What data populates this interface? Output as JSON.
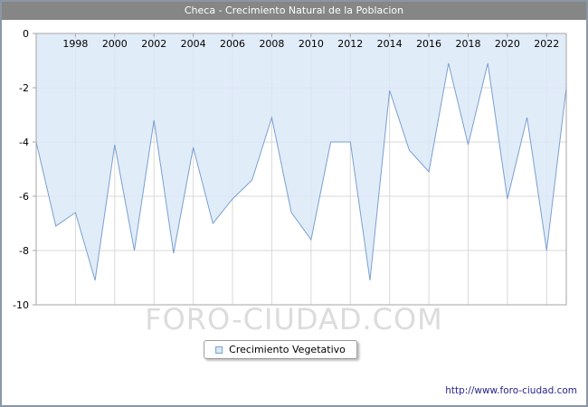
{
  "title": "Checa - Crecimiento Natural de la Poblacion",
  "watermark": "FORO-CIUDAD.COM",
  "legend": {
    "label": "Crecimiento Vegetativo"
  },
  "footer": {
    "url": "http://www.foro-ciudad.com"
  },
  "chart_data": {
    "type": "area",
    "title": "Checa - Crecimiento Natural de la Poblacion",
    "series_name": "Crecimiento Vegetativo",
    "x": [
      1996,
      1997,
      1998,
      1999,
      2000,
      2001,
      2002,
      2003,
      2004,
      2005,
      2006,
      2007,
      2008,
      2009,
      2010,
      2011,
      2012,
      2013,
      2014,
      2015,
      2016,
      2017,
      2018,
      2019,
      2020,
      2021,
      2022,
      2023
    ],
    "values": [
      -4.0,
      -7.1,
      -6.6,
      -9.1,
      -4.1,
      -8.0,
      -3.2,
      -8.1,
      -4.2,
      -7.0,
      -6.1,
      -5.4,
      -3.1,
      -6.6,
      -7.6,
      -4.0,
      -4.0,
      -9.1,
      -2.1,
      -4.3,
      -5.1,
      -1.1,
      -4.1,
      -1.1,
      -6.1,
      -3.1,
      -8.0,
      -2.0
    ],
    "baseline": 0,
    "ylim": [
      -10,
      0
    ],
    "grid": true,
    "legend_position": "bottom",
    "x_ticks": [
      1998,
      2000,
      2002,
      2004,
      2006,
      2008,
      2010,
      2012,
      2014,
      2016,
      2018,
      2020,
      2022
    ],
    "x_tick_labels": [
      "1998",
      "2000",
      "2002",
      "2004",
      "2006",
      "2008",
      "2010",
      "2012",
      "2014",
      "2016",
      "2018",
      "2020",
      "2022"
    ],
    "y_ticks": [
      0,
      -2,
      -4,
      -6,
      -8,
      -10
    ],
    "y_tick_labels": [
      "0",
      "-2",
      "-4",
      "-6",
      "-8",
      "-10"
    ],
    "colors": {
      "line": "#7aa0cf",
      "fill": "#d9e7f7",
      "grid": "#d9d9d9",
      "plot_border": "#a6a6a6",
      "titlebar_bg": "#868686",
      "titlebar_text": "#ffffff",
      "watermark": "#dcdcdc"
    }
  }
}
